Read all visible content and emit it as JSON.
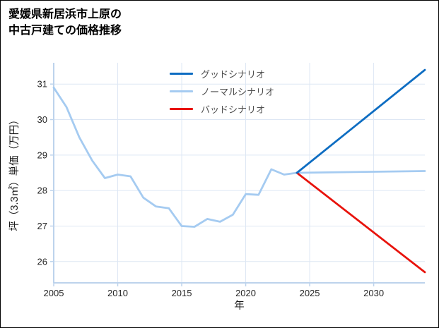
{
  "title": {
    "line1": "愛媛県新居浜市上原の",
    "line2": "中古戸建ての価格推移"
  },
  "chart_data": {
    "type": "line",
    "title": "愛媛県新居浜市上原の中古戸建ての価格推移",
    "xlabel": "年",
    "ylabel": "坪（3.3㎡）単価（万円）",
    "xlim": [
      2005,
      2034
    ],
    "ylim": [
      25.4,
      31.6
    ],
    "xticks": [
      2005,
      2010,
      2015,
      2020,
      2025,
      2030
    ],
    "yticks": [
      26,
      27,
      28,
      29,
      30,
      31
    ],
    "grid": true,
    "legend_position": "upper-center-inside",
    "draw_order": [
      1,
      2,
      0
    ],
    "colors": {
      "grid": "#dde7f4",
      "axis": "#bdd3ec",
      "tick_label": "#262626",
      "legend_text": "#4d4d4d"
    },
    "series": [
      {
        "name": "グッドシナリオ",
        "color": "#0e6dc2",
        "x": [
          2024,
          2034
        ],
        "y": [
          28.5,
          31.4
        ]
      },
      {
        "name": "ノーマルシナリオ",
        "color": "#a5cbf1",
        "x": [
          2005,
          2006,
          2007,
          2008,
          2009,
          2010,
          2011,
          2012,
          2013,
          2014,
          2015,
          2016,
          2017,
          2018,
          2019,
          2020,
          2021,
          2022,
          2023,
          2024,
          2034
        ],
        "y": [
          30.9,
          30.35,
          29.5,
          28.85,
          28.35,
          28.45,
          28.4,
          27.8,
          27.55,
          27.5,
          27.0,
          26.98,
          27.2,
          27.12,
          27.32,
          27.9,
          27.88,
          28.6,
          28.45,
          28.5,
          28.55
        ]
      },
      {
        "name": "バッドシナリオ",
        "color": "#e8130c",
        "x": [
          2024,
          2034
        ],
        "y": [
          28.5,
          25.7
        ]
      }
    ]
  }
}
